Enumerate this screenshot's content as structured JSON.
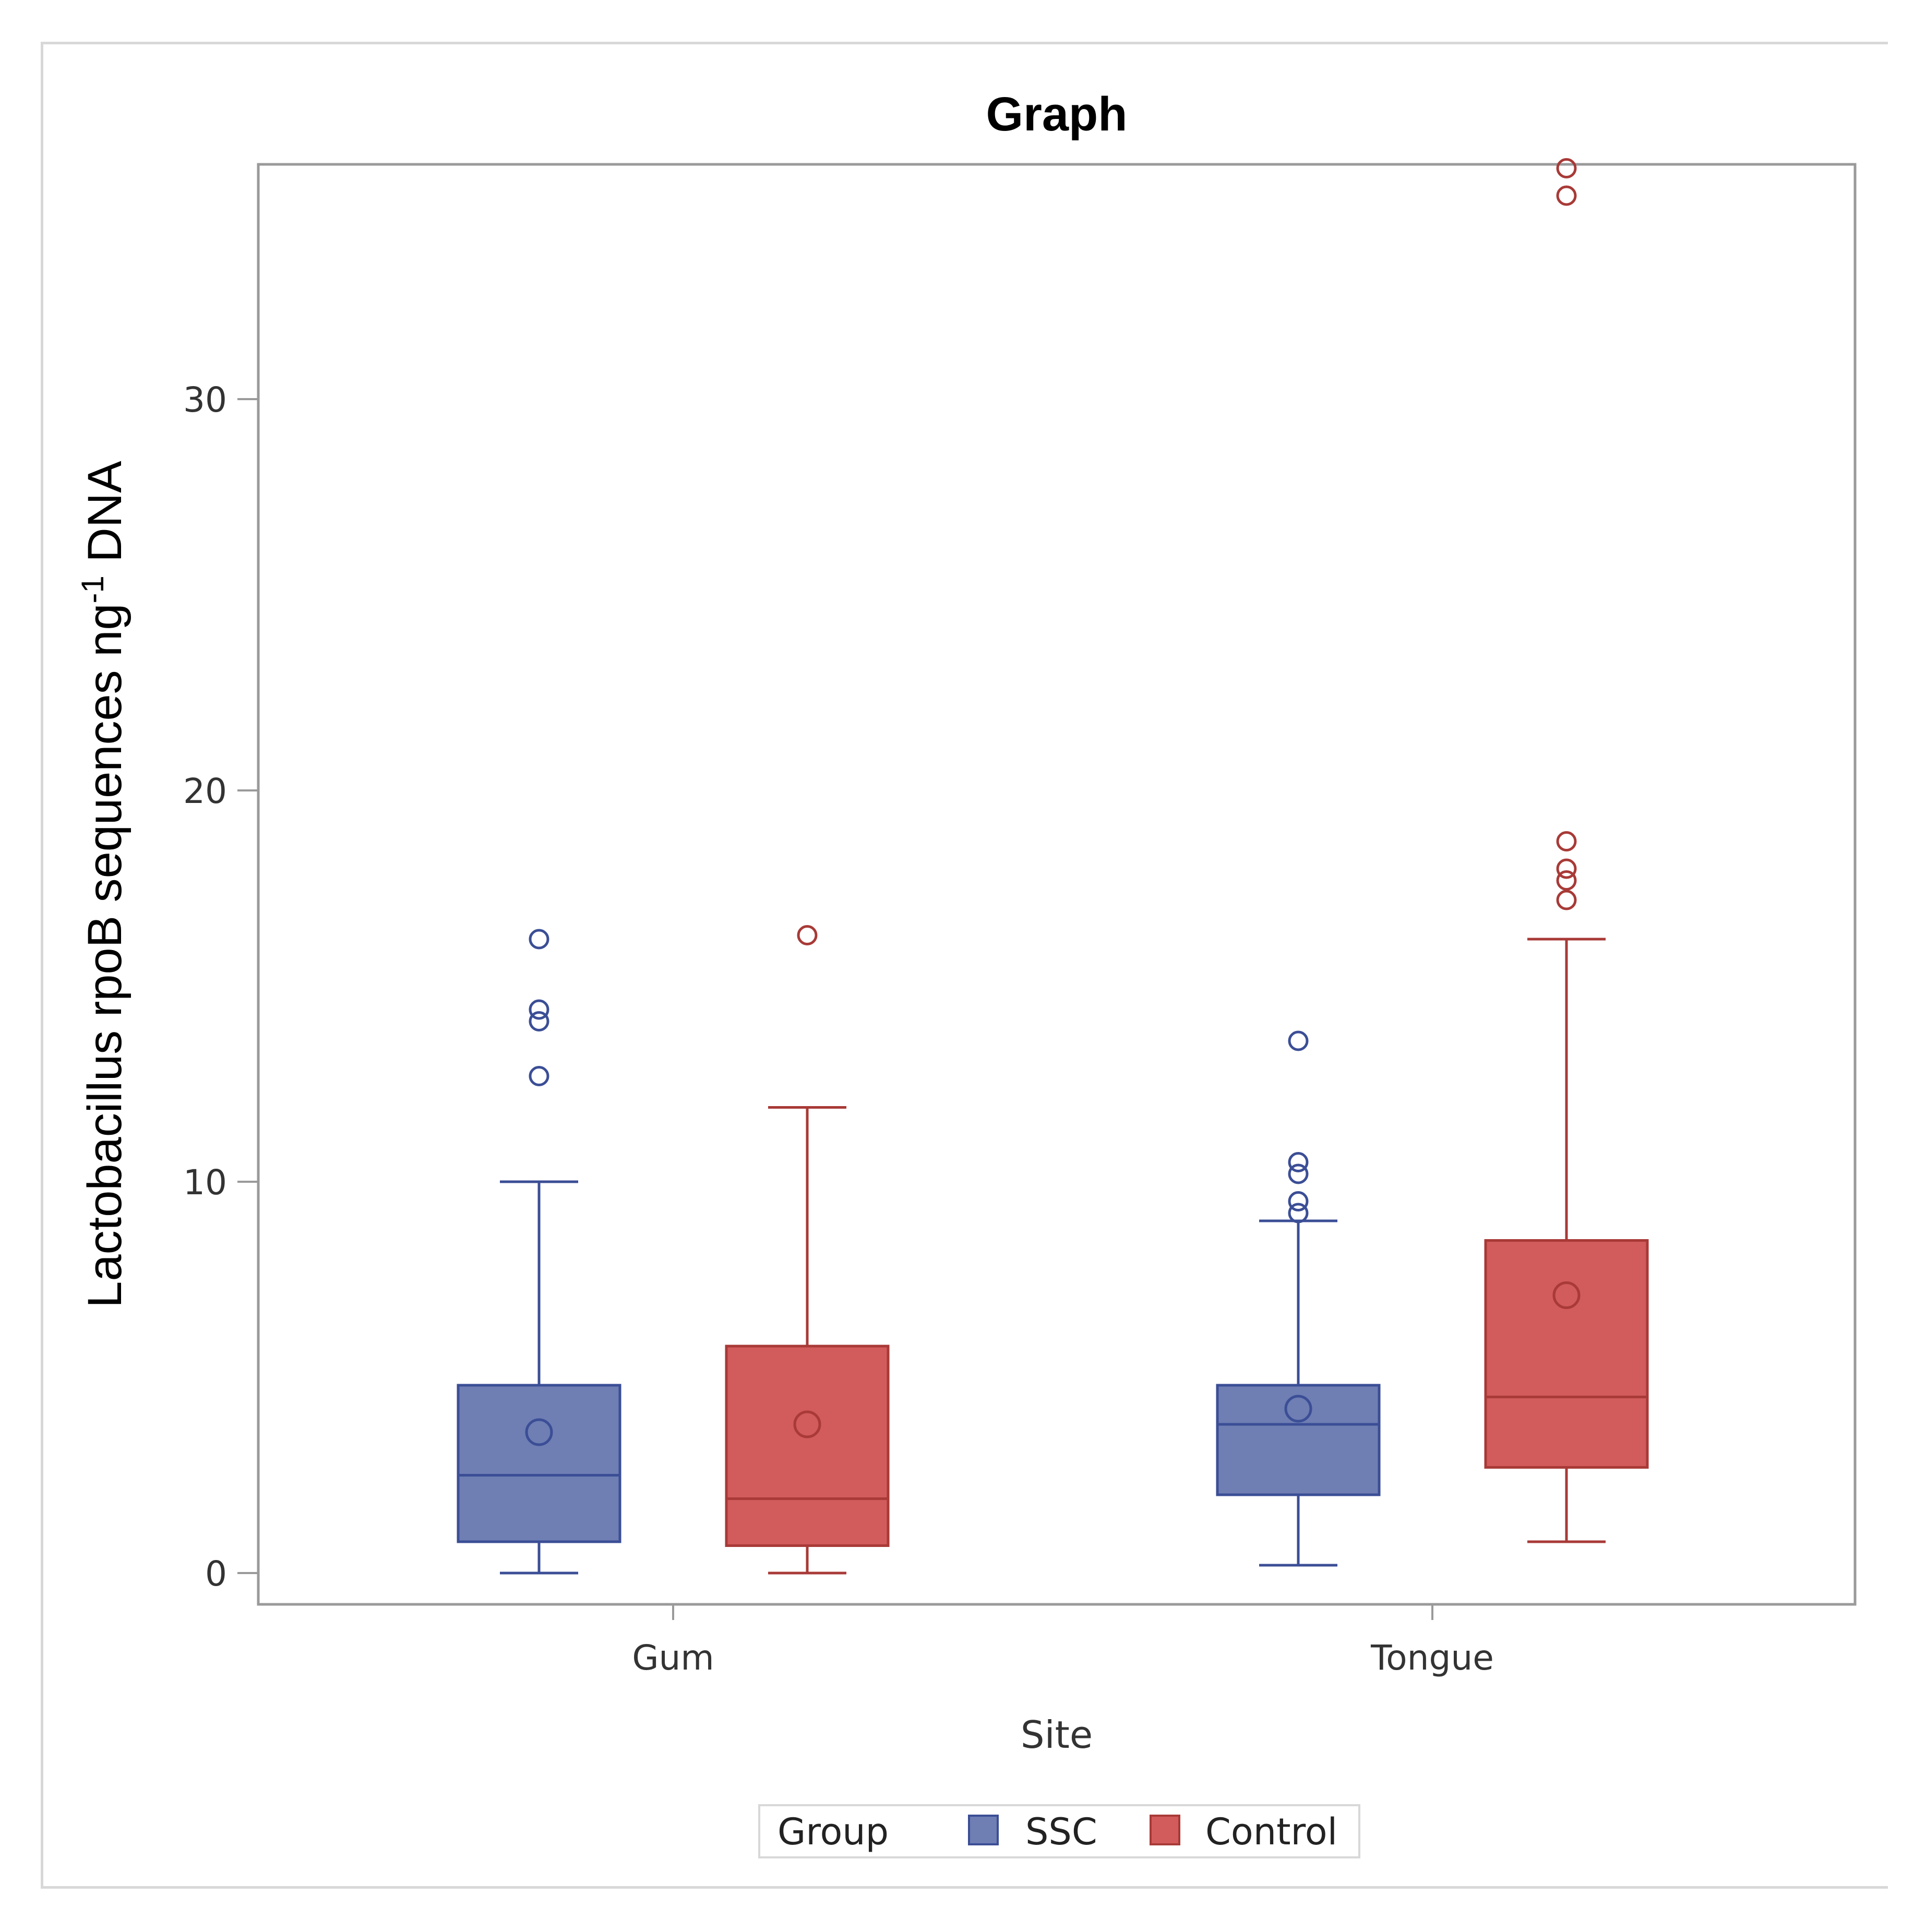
{
  "chart_data": {
    "type": "boxplot",
    "title": "Graph",
    "xlabel": "Site",
    "ylabel": {
      "pre": "Lactobacillus rpoB sequences ng",
      "sup": "-1",
      "post": " DNA"
    },
    "ylim": [
      -0.8,
      36
    ],
    "yticks": [
      0,
      10,
      20,
      30
    ],
    "categories": [
      "Gum",
      "Tongue"
    ],
    "legend": {
      "title": "Group",
      "position": "bottom"
    },
    "colors": {
      "SSC": {
        "fill": "#6f7eb3",
        "stroke": "#3b4e96"
      },
      "Control": {
        "fill": "#d25b5b",
        "stroke": "#a83a37"
      },
      "axis": "#9a9a9a",
      "frame": "#d8d8d8"
    },
    "series": [
      {
        "name": "SSC",
        "boxes": [
          {
            "category": "Gum",
            "whisker_low": 0.0,
            "q1": 0.8,
            "median": 2.5,
            "q3": 4.8,
            "whisker_high": 10.0,
            "mean": 3.6,
            "outliers": [
              12.7,
              14.1,
              14.4,
              16.2
            ]
          },
          {
            "category": "Tongue",
            "whisker_low": 0.2,
            "q1": 2.0,
            "median": 3.8,
            "q3": 4.8,
            "whisker_high": 9.0,
            "mean": 4.2,
            "outliers": [
              9.2,
              9.5,
              10.2,
              10.5,
              13.6
            ]
          }
        ]
      },
      {
        "name": "Control",
        "boxes": [
          {
            "category": "Gum",
            "whisker_low": 0.0,
            "q1": 0.7,
            "median": 1.9,
            "q3": 5.8,
            "whisker_high": 11.9,
            "mean": 3.8,
            "outliers": [
              16.3
            ]
          },
          {
            "category": "Tongue",
            "whisker_low": 0.8,
            "q1": 2.7,
            "median": 4.5,
            "q3": 8.5,
            "whisker_high": 16.2,
            "mean": 7.1,
            "outliers": [
              17.2,
              17.7,
              18.0,
              18.7,
              35.2,
              35.9
            ]
          }
        ]
      }
    ]
  }
}
